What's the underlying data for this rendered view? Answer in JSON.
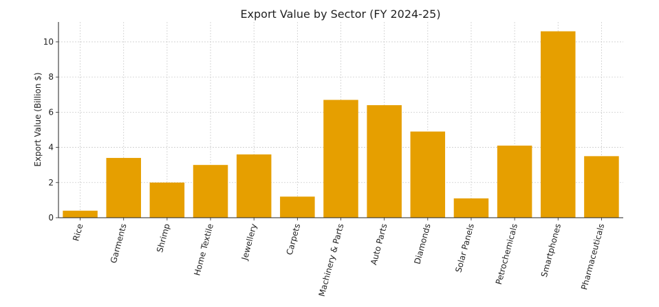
{
  "chart_data": {
    "type": "bar",
    "title": "Export Value by Sector (FY 2024-25)",
    "xlabel": "",
    "ylabel": "Export Value (Billion $)",
    "categories": [
      "Rice",
      "Garments",
      "Shrimp",
      "Home Textile",
      "Jewellery",
      "Carpets",
      "Machinery & Parts",
      "Auto Parts",
      "Diamonds",
      "Solar Panels",
      "Petrochemicals",
      "Smartphones",
      "Pharmaceuticals"
    ],
    "values": [
      0.4,
      3.4,
      2.0,
      3.0,
      3.6,
      1.2,
      6.7,
      6.4,
      4.9,
      1.1,
      4.1,
      10.6,
      3.5
    ],
    "ylim": [
      0,
      11.13
    ],
    "yticks": [
      "0",
      "2",
      "4",
      "6",
      "8",
      "10"
    ],
    "grid": true,
    "bar_color": "#E69F00",
    "grid_color": "#cccccc",
    "axis_color": "#222222"
  }
}
